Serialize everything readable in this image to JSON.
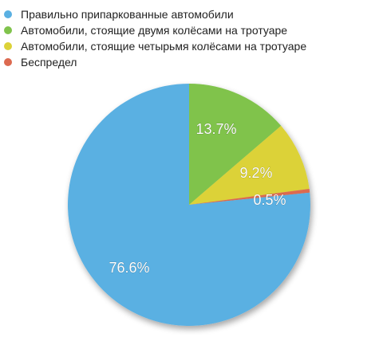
{
  "chart_data": {
    "type": "pie",
    "categories": [
      "Правильно припаркованные автомобили",
      "Автомобили, стоящие двумя колёсами на тротуаре",
      "Автомобили, стоящие четырьмя колёсами на тротуаре",
      "Беспредел"
    ],
    "values": [
      76.6,
      13.7,
      9.2,
      0.5
    ],
    "value_labels": [
      "76.6%",
      "13.7%",
      "9.2%",
      "0.5%"
    ],
    "colors": [
      "#5ab0e2",
      "#80c34c",
      "#dcd238",
      "#dc6a50"
    ],
    "start_angle_deg": 0,
    "direction": "clockwise",
    "legend_position": "top-left"
  }
}
